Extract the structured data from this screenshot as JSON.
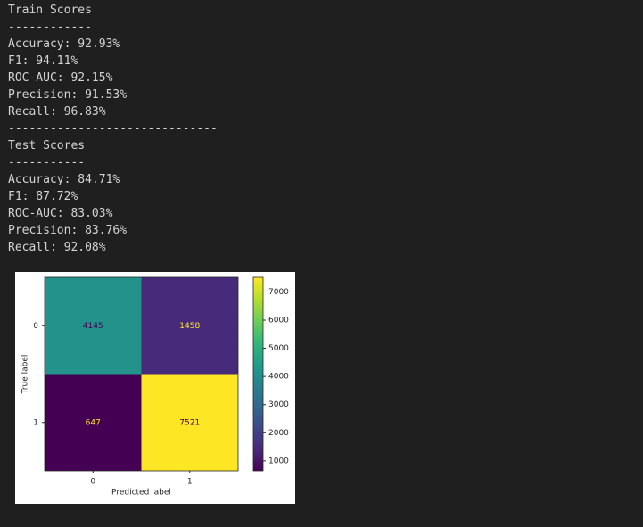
{
  "output_lines": [
    "Train Scores",
    "------------",
    "Accuracy: 92.93%",
    "F1: 94.11%",
    "ROC-AUC: 92.15%",
    "Precision: 91.53%",
    "Recall: 96.83%",
    "------------------------------",
    "Test Scores",
    "-----------",
    "Accuracy: 84.71%",
    "F1: 87.72%",
    "ROC-AUC: 83.03%",
    "Precision: 83.76%",
    "Recall: 92.08%"
  ],
  "chart_data": {
    "type": "heatmap",
    "x_label": "Predicted label",
    "y_label": "True label",
    "x_categories": [
      "0",
      "1"
    ],
    "y_categories": [
      "0",
      "1"
    ],
    "values": [
      [
        4145,
        1458
      ],
      [
        647,
        7521
      ]
    ],
    "colormap": "viridis",
    "clim": [
      647,
      7521
    ],
    "colorbar_ticks": [
      1000,
      2000,
      3000,
      4000,
      5000,
      6000,
      7000
    ]
  }
}
